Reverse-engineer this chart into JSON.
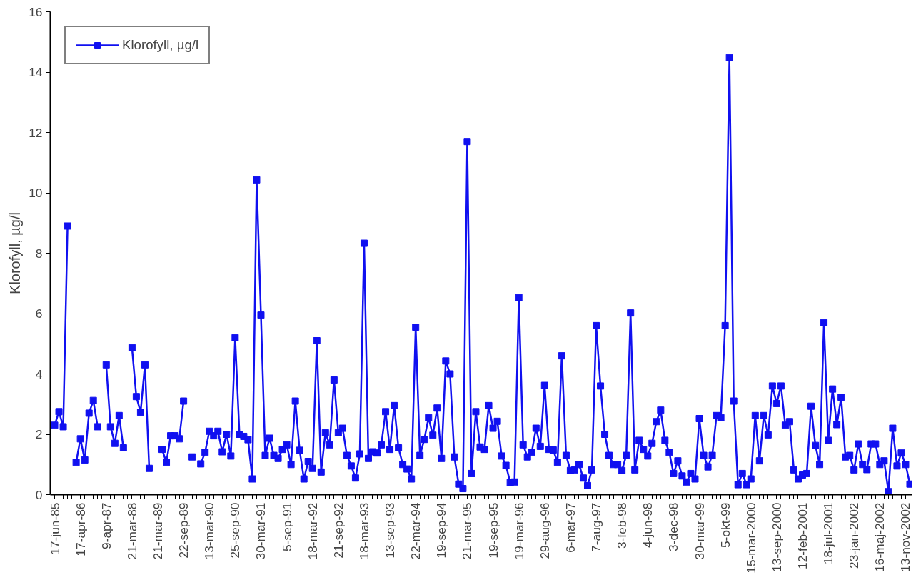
{
  "chart_data": {
    "type": "line",
    "ylabel": "Klorofyll, µg/l",
    "categories": [
      "17-jun-85",
      null,
      null,
      null,
      null,
      null,
      "17-apr-86",
      null,
      null,
      null,
      null,
      null,
      "9-apr-87",
      null,
      null,
      null,
      null,
      null,
      "21-mar-88",
      null,
      null,
      null,
      null,
      null,
      "21-mar-89",
      null,
      null,
      null,
      null,
      null,
      "22-sep-89",
      null,
      null,
      null,
      null,
      null,
      "13-mar-90",
      null,
      null,
      null,
      null,
      null,
      "25-sep-90",
      null,
      null,
      null,
      null,
      null,
      "30-mar-91",
      null,
      null,
      null,
      null,
      null,
      "5-sep-91",
      null,
      null,
      null,
      null,
      null,
      "18-mar-92",
      null,
      null,
      null,
      null,
      null,
      "21-sep-92",
      null,
      null,
      null,
      null,
      null,
      "18-mar-93",
      null,
      null,
      null,
      null,
      null,
      "13-sep-93",
      null,
      null,
      null,
      null,
      null,
      "22-mar-94",
      null,
      null,
      null,
      null,
      null,
      "19-sep-94",
      null,
      null,
      null,
      null,
      null,
      "21-mar-95",
      null,
      null,
      null,
      null,
      null,
      "19-sep-95",
      null,
      null,
      null,
      null,
      null,
      "19-mar-96",
      null,
      null,
      null,
      null,
      null,
      "29-aug-96",
      null,
      null,
      null,
      null,
      null,
      "6-mar-97",
      null,
      null,
      null,
      null,
      null,
      "7-aug-97",
      null,
      null,
      null,
      null,
      null,
      "3-feb-98",
      null,
      null,
      null,
      null,
      null,
      "4-jun-98",
      null,
      null,
      null,
      null,
      null,
      "3-dec-98",
      null,
      null,
      null,
      null,
      null,
      "30-mar-99",
      null,
      null,
      null,
      null,
      null,
      "5-okt-99",
      null,
      null,
      null,
      null,
      null,
      "15-mar-2000",
      null,
      null,
      null,
      null,
      null,
      "13-sep-2000",
      null,
      null,
      null,
      null,
      null,
      "12-feb-2001",
      null,
      null,
      null,
      null,
      null,
      "18-jul-2001",
      null,
      null,
      null,
      null,
      null,
      "23-jan-2002",
      null,
      null,
      null,
      null,
      null,
      "16-maj-2002",
      null,
      null,
      null,
      null,
      null,
      "13-nov-2002",
      null
    ],
    "series": [
      {
        "name": "Klorofyll, µg/l",
        "color": "#1010f0",
        "values": [
          2.3,
          2.75,
          2.25,
          8.9,
          null,
          1.07,
          1.85,
          1.15,
          2.7,
          3.12,
          2.25,
          null,
          4.3,
          2.25,
          1.7,
          2.62,
          1.55,
          null,
          4.87,
          3.25,
          2.73,
          4.3,
          0.87,
          null,
          null,
          1.5,
          1.07,
          1.95,
          1.95,
          1.85,
          3.1,
          null,
          1.25,
          null,
          1.02,
          1.4,
          2.1,
          1.95,
          2.1,
          1.42,
          2.0,
          1.28,
          5.2,
          2.0,
          1.93,
          1.82,
          0.52,
          10.43,
          5.95,
          1.3,
          1.87,
          1.3,
          1.2,
          1.5,
          1.65,
          1.0,
          3.1,
          1.47,
          0.52,
          1.1,
          0.87,
          5.1,
          0.75,
          2.05,
          1.65,
          3.8,
          2.05,
          2.2,
          1.3,
          0.95,
          0.55,
          1.35,
          8.33,
          1.2,
          1.42,
          1.38,
          1.65,
          2.75,
          1.5,
          2.95,
          1.55,
          1.0,
          0.85,
          0.52,
          5.55,
          1.3,
          1.83,
          2.55,
          1.97,
          2.87,
          1.2,
          4.43,
          4.0,
          1.25,
          0.35,
          0.2,
          11.7,
          0.7,
          2.75,
          1.58,
          1.5,
          2.95,
          2.2,
          2.43,
          1.28,
          0.97,
          0.4,
          0.42,
          6.53,
          1.65,
          1.25,
          1.4,
          2.2,
          1.6,
          3.62,
          1.5,
          1.48,
          1.07,
          4.6,
          1.3,
          0.8,
          0.82,
          1.0,
          0.55,
          0.3,
          0.82,
          5.6,
          3.6,
          2.0,
          1.3,
          1.0,
          1.0,
          0.8,
          1.3,
          6.02,
          0.82,
          1.8,
          1.5,
          1.28,
          1.7,
          2.42,
          2.8,
          1.8,
          1.4,
          0.7,
          1.12,
          0.62,
          0.42,
          0.7,
          0.52,
          2.52,
          1.3,
          0.92,
          1.3,
          2.62,
          2.55,
          5.6,
          14.48,
          3.1,
          0.33,
          0.7,
          0.33,
          0.52,
          2.62,
          1.12,
          2.62,
          1.98,
          3.6,
          3.02,
          3.6,
          2.3,
          2.42,
          0.82,
          0.52,
          0.65,
          0.7,
          2.93,
          1.63,
          1.0,
          5.7,
          1.8,
          3.5,
          2.32,
          3.23,
          1.25,
          1.3,
          0.82,
          1.68,
          1.0,
          0.83,
          1.68,
          1.68,
          1.0,
          1.12,
          0.1,
          2.2,
          0.95,
          1.38,
          1.0,
          0.35
        ]
      }
    ],
    "ylim": [
      0,
      16
    ],
    "yticks": [
      0,
      2,
      4,
      6,
      8,
      10,
      12,
      14,
      16
    ],
    "grid": false,
    "legend": "top left",
    "marker": "square",
    "line_style": "solid"
  }
}
